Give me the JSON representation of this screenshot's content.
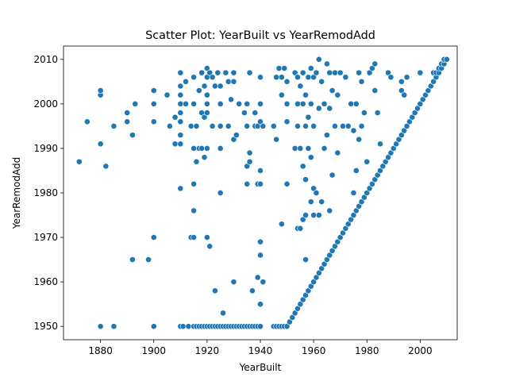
{
  "chart_data": {
    "type": "scatter",
    "title": "Scatter Plot: YearBuilt vs YearRemodAdd",
    "xlabel": "YearBuilt",
    "ylabel": "YearRemodAdd",
    "xlim": [
      1866.1,
      2013.9
    ],
    "ylim": [
      1947.0,
      2013.0
    ],
    "xticks": [
      1880,
      1900,
      1920,
      1940,
      1960,
      1980,
      2000
    ],
    "yticks": [
      1950,
      1960,
      1970,
      1980,
      1990,
      2000,
      2010
    ],
    "grid": false,
    "marker_color": "#1f77b4",
    "points": [
      [
        1872,
        1987
      ],
      [
        1875,
        1996
      ],
      [
        1880,
        1950
      ],
      [
        1880,
        1991
      ],
      [
        1880,
        2002
      ],
      [
        1880,
        2003
      ],
      [
        1882,
        1986
      ],
      [
        1885,
        1950
      ],
      [
        1885,
        1995
      ],
      [
        1890,
        1996
      ],
      [
        1890,
        1998
      ],
      [
        1892,
        1965
      ],
      [
        1892,
        1993
      ],
      [
        1893,
        2000
      ],
      [
        1898,
        1965
      ],
      [
        1900,
        1950
      ],
      [
        1900,
        1970
      ],
      [
        1900,
        1996
      ],
      [
        1900,
        2000
      ],
      [
        1900,
        2003
      ],
      [
        1905,
        2002
      ],
      [
        1906,
        1995
      ],
      [
        1908,
        1991
      ],
      [
        1908,
        1997
      ],
      [
        1910,
        1950
      ],
      [
        1910,
        1981
      ],
      [
        1910,
        1991
      ],
      [
        1910,
        1993
      ],
      [
        1910,
        1996
      ],
      [
        1910,
        1998
      ],
      [
        1910,
        2000
      ],
      [
        1910,
        2002
      ],
      [
        1910,
        2004
      ],
      [
        1910,
        2007
      ],
      [
        1911,
        1950
      ],
      [
        1912,
        2000
      ],
      [
        1912,
        2005
      ],
      [
        1913,
        1950
      ],
      [
        1914,
        1970
      ],
      [
        1914,
        1995
      ],
      [
        1915,
        1950
      ],
      [
        1915,
        1970
      ],
      [
        1915,
        1976
      ],
      [
        1915,
        1982
      ],
      [
        1915,
        1990
      ],
      [
        1915,
        2000
      ],
      [
        1915,
        2006
      ],
      [
        1916,
        1950
      ],
      [
        1916,
        1987
      ],
      [
        1916,
        1995
      ],
      [
        1917,
        1950
      ],
      [
        1917,
        1990
      ],
      [
        1917,
        2003
      ],
      [
        1918,
        1950
      ],
      [
        1918,
        1990
      ],
      [
        1918,
        1998
      ],
      [
        1918,
        2007
      ],
      [
        1919,
        1950
      ],
      [
        1919,
        1988
      ],
      [
        1919,
        1997
      ],
      [
        1919,
        2004
      ],
      [
        1920,
        1950
      ],
      [
        1920,
        1970
      ],
      [
        1920,
        1990
      ],
      [
        1920,
        1998
      ],
      [
        1920,
        2000
      ],
      [
        1920,
        2002
      ],
      [
        1920,
        2006
      ],
      [
        1920,
        2008
      ],
      [
        1921,
        1950
      ],
      [
        1921,
        1968
      ],
      [
        1921,
        2007
      ],
      [
        1922,
        1950
      ],
      [
        1922,
        1995
      ],
      [
        1922,
        2006
      ],
      [
        1923,
        1950
      ],
      [
        1923,
        1958
      ],
      [
        1923,
        2004
      ],
      [
        1924,
        1950
      ],
      [
        1924,
        2007
      ],
      [
        1925,
        1950
      ],
      [
        1925,
        1980
      ],
      [
        1925,
        1990
      ],
      [
        1925,
        1995
      ],
      [
        1925,
        2000
      ],
      [
        1925,
        2004
      ],
      [
        1926,
        1950
      ],
      [
        1926,
        1953
      ],
      [
        1927,
        1950
      ],
      [
        1927,
        2007
      ],
      [
        1928,
        1950
      ],
      [
        1928,
        1995
      ],
      [
        1928,
        2005
      ],
      [
        1929,
        1950
      ],
      [
        1929,
        2001
      ],
      [
        1930,
        1950
      ],
      [
        1930,
        1960
      ],
      [
        1930,
        1992
      ],
      [
        1930,
        2005
      ],
      [
        1930,
        2007
      ],
      [
        1931,
        1950
      ],
      [
        1931,
        1993
      ],
      [
        1932,
        1950
      ],
      [
        1932,
        2000
      ],
      [
        1933,
        1950
      ],
      [
        1934,
        1950
      ],
      [
        1934,
        1998
      ],
      [
        1935,
        1950
      ],
      [
        1935,
        1982
      ],
      [
        1935,
        1986
      ],
      [
        1935,
        1995
      ],
      [
        1935,
        2000
      ],
      [
        1936,
        1950
      ],
      [
        1936,
        1987
      ],
      [
        1936,
        1989
      ],
      [
        1936,
        2007
      ],
      [
        1937,
        1950
      ],
      [
        1937,
        1958
      ],
      [
        1938,
        1950
      ],
      [
        1938,
        1995
      ],
      [
        1938,
        1998
      ],
      [
        1939,
        1950
      ],
      [
        1939,
        1961
      ],
      [
        1939,
        1982
      ],
      [
        1939,
        1995
      ],
      [
        1940,
        1950
      ],
      [
        1940,
        1955
      ],
      [
        1940,
        1966
      ],
      [
        1940,
        1969
      ],
      [
        1940,
        1982
      ],
      [
        1940,
        1985
      ],
      [
        1940,
        1996
      ],
      [
        1940,
        2000
      ],
      [
        1940,
        2006
      ],
      [
        1941,
        1960
      ],
      [
        1941,
        1995
      ],
      [
        1945,
        1950
      ],
      [
        1945,
        1995
      ],
      [
        1946,
        1950
      ],
      [
        1946,
        1992
      ],
      [
        1946,
        2006
      ],
      [
        1947,
        1950
      ],
      [
        1947,
        2008
      ],
      [
        1948,
        1950
      ],
      [
        1948,
        1973
      ],
      [
        1948,
        2002
      ],
      [
        1948,
        2006
      ],
      [
        1949,
        1950
      ],
      [
        1949,
        2008
      ],
      [
        1950,
        1950
      ],
      [
        1950,
        1982
      ],
      [
        1950,
        1996
      ],
      [
        1950,
        2000
      ],
      [
        1950,
        2005
      ],
      [
        1951,
        1951
      ],
      [
        1952,
        1952
      ],
      [
        1953,
        1953
      ],
      [
        1953,
        1990
      ],
      [
        1953,
        2007
      ],
      [
        1954,
        1954
      ],
      [
        1954,
        1972
      ],
      [
        1954,
        1995
      ],
      [
        1954,
        2000
      ],
      [
        1954,
        2006
      ],
      [
        1955,
        1955
      ],
      [
        1955,
        1972
      ],
      [
        1955,
        1990
      ],
      [
        1955,
        2004
      ],
      [
        1956,
        1956
      ],
      [
        1956,
        1974
      ],
      [
        1956,
        1986
      ],
      [
        1956,
        2000
      ],
      [
        1956,
        2007
      ],
      [
        1957,
        1957
      ],
      [
        1957,
        1965
      ],
      [
        1957,
        1975
      ],
      [
        1957,
        1983
      ],
      [
        1957,
        1995
      ],
      [
        1957,
        2002
      ],
      [
        1958,
        1958
      ],
      [
        1958,
        1990
      ],
      [
        1958,
        1997
      ],
      [
        1958,
        2006
      ],
      [
        1959,
        1959
      ],
      [
        1959,
        1978
      ],
      [
        1959,
        1988
      ],
      [
        1959,
        2000
      ],
      [
        1959,
        2008
      ],
      [
        1960,
        1960
      ],
      [
        1960,
        1975
      ],
      [
        1960,
        1981
      ],
      [
        1960,
        1995
      ],
      [
        1960,
        2006
      ],
      [
        1961,
        1961
      ],
      [
        1961,
        1980
      ],
      [
        1961,
        2007
      ],
      [
        1962,
        1962
      ],
      [
        1962,
        1975
      ],
      [
        1962,
        1999
      ],
      [
        1962,
        2010
      ],
      [
        1963,
        1963
      ],
      [
        1963,
        1978
      ],
      [
        1963,
        2005
      ],
      [
        1964,
        1964
      ],
      [
        1964,
        1990
      ],
      [
        1964,
        2000
      ],
      [
        1965,
        1965
      ],
      [
        1965,
        1993
      ],
      [
        1965,
        2009
      ],
      [
        1966,
        1966
      ],
      [
        1966,
        1976
      ],
      [
        1966,
        1999
      ],
      [
        1966,
        2007
      ],
      [
        1967,
        1967
      ],
      [
        1967,
        1984
      ],
      [
        1967,
        2003
      ],
      [
        1968,
        1968
      ],
      [
        1968,
        1995
      ],
      [
        1968,
        2007
      ],
      [
        1969,
        1969
      ],
      [
        1969,
        1989
      ],
      [
        1969,
        2002
      ],
      [
        1970,
        1970
      ],
      [
        1970,
        2007
      ],
      [
        1971,
        1971
      ],
      [
        1971,
        1995
      ],
      [
        1972,
        1972
      ],
      [
        1972,
        2006
      ],
      [
        1973,
        1973
      ],
      [
        1973,
        1995
      ],
      [
        1974,
        1974
      ],
      [
        1974,
        2000
      ],
      [
        1975,
        1975
      ],
      [
        1975,
        1980
      ],
      [
        1975,
        1994
      ],
      [
        1976,
        1976
      ],
      [
        1976,
        1985
      ],
      [
        1976,
        2000
      ],
      [
        1977,
        1977
      ],
      [
        1977,
        1992
      ],
      [
        1977,
        2007
      ],
      [
        1978,
        1978
      ],
      [
        1978,
        1995
      ],
      [
        1978,
        2005
      ],
      [
        1979,
        1979
      ],
      [
        1979,
        1998
      ],
      [
        1980,
        1980
      ],
      [
        1980,
        1987
      ],
      [
        1981,
        1981
      ],
      [
        1981,
        2007
      ],
      [
        1982,
        1982
      ],
      [
        1982,
        2008
      ],
      [
        1983,
        1983
      ],
      [
        1983,
        2003
      ],
      [
        1983,
        2009
      ],
      [
        1984,
        1984
      ],
      [
        1984,
        1998
      ],
      [
        1985,
        1985
      ],
      [
        1985,
        1991
      ],
      [
        1986,
        1986
      ],
      [
        1987,
        1987
      ],
      [
        1988,
        1988
      ],
      [
        1988,
        2007
      ],
      [
        1989,
        1989
      ],
      [
        1989,
        2006
      ],
      [
        1990,
        1990
      ],
      [
        1991,
        1991
      ],
      [
        1992,
        1992
      ],
      [
        1993,
        1993
      ],
      [
        1993,
        2003
      ],
      [
        1993,
        2005
      ],
      [
        1994,
        1994
      ],
      [
        1994,
        2002
      ],
      [
        1995,
        1995
      ],
      [
        1995,
        2006
      ],
      [
        1996,
        1996
      ],
      [
        1997,
        1997
      ],
      [
        1998,
        1998
      ],
      [
        1999,
        1999
      ],
      [
        2000,
        2000
      ],
      [
        2000,
        2007
      ],
      [
        2001,
        2001
      ],
      [
        2002,
        2002
      ],
      [
        2003,
        2003
      ],
      [
        2004,
        2004
      ],
      [
        2005,
        2005
      ],
      [
        2005,
        2007
      ],
      [
        2006,
        2006
      ],
      [
        2006,
        2007
      ],
      [
        2007,
        2007
      ],
      [
        2007,
        2008
      ],
      [
        2008,
        2008
      ],
      [
        2008,
        2009
      ],
      [
        2009,
        2009
      ],
      [
        2009,
        2010
      ],
      [
        2010,
        2010
      ]
    ]
  }
}
